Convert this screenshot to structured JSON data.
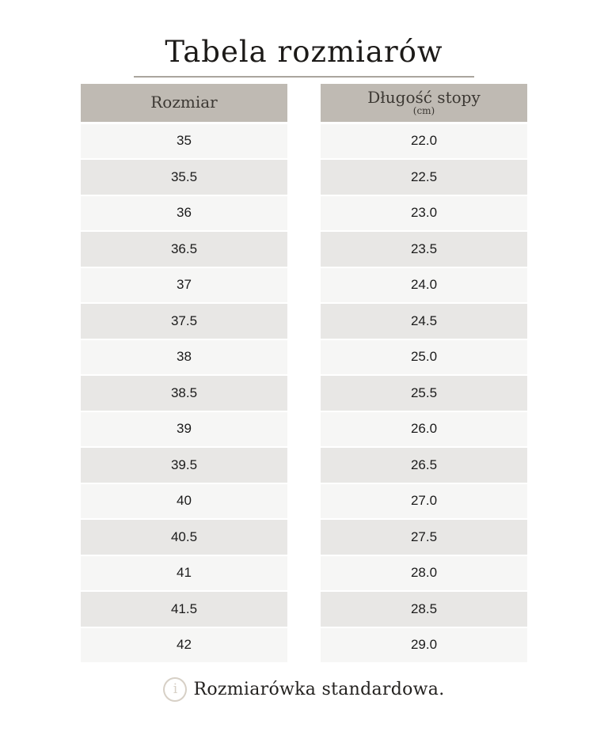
{
  "page": {
    "title": "Tabela rozmiarów"
  },
  "size_table": {
    "header": "Rozmiar",
    "rows": [
      "35",
      "35.5",
      "36",
      "36.5",
      "37",
      "37.5",
      "38",
      "38.5",
      "39",
      "39.5",
      "40",
      "40.5",
      "41",
      "41.5",
      "42"
    ]
  },
  "length_table": {
    "header": "Długość stopy",
    "header_unit": "(cm)",
    "rows": [
      "22.0",
      "22.5",
      "23.0",
      "23.5",
      "24.0",
      "24.5",
      "25.0",
      "25.5",
      "26.0",
      "26.5",
      "27.0",
      "27.5",
      "28.0",
      "28.5",
      "29.0"
    ]
  },
  "footer": {
    "icon": "info-icon",
    "icon_glyph": "i",
    "note": "Rozmiarówka standardowa."
  },
  "colors": {
    "header_bg": "#bfbab3",
    "row_light": "#f6f6f5",
    "row_dark": "#e8e7e5",
    "divider": "#aaa59e",
    "icon": "#d7d0c6",
    "title_text": "#1c1a18",
    "cell_text": "#1b1b1b"
  }
}
